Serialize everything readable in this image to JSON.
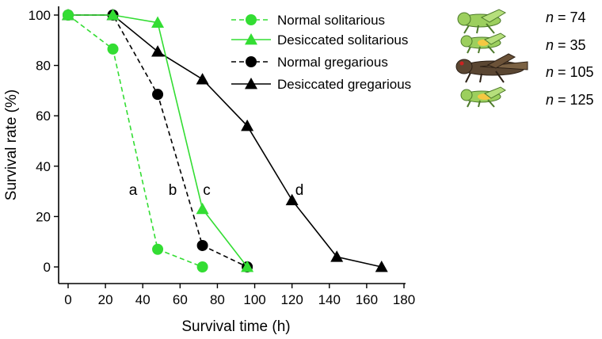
{
  "chart_data": {
    "type": "line",
    "title": "",
    "xlabel": "Survival time (h)",
    "ylabel": "Survival rate (%)",
    "xlim": [
      0,
      180
    ],
    "ylim": [
      0,
      100
    ],
    "xticks": [
      "0",
      "20",
      "40",
      "60",
      "80",
      "100",
      "120",
      "140",
      "160",
      "180"
    ],
    "yticks": [
      "0",
      "20",
      "40",
      "60",
      "80",
      "100"
    ],
    "grid": false,
    "series": [
      {
        "name": "Normal solitarious",
        "color": "#33dd33",
        "dash": true,
        "marker": "circle",
        "x": [
          0,
          24,
          48,
          72
        ],
        "y": [
          100,
          86.5,
          7,
          0
        ],
        "n": "74",
        "label": "a"
      },
      {
        "name": "Desiccated solitarious",
        "color": "#33dd33",
        "dash": false,
        "marker": "triangle",
        "x": [
          0,
          24,
          48,
          72,
          96
        ],
        "y": [
          100,
          100,
          97,
          23,
          0
        ],
        "n": "35",
        "label": "c"
      },
      {
        "name": "Normal gregarious",
        "color": "#000000",
        "dash": true,
        "marker": "circle",
        "x": [
          0,
          24,
          48,
          72,
          96
        ],
        "y": [
          100,
          100,
          68.5,
          8.5,
          0
        ],
        "n": "105",
        "label": "b"
      },
      {
        "name": "Desiccated gregarious",
        "color": "#000000",
        "dash": false,
        "marker": "triangle",
        "x": [
          0,
          24,
          48,
          72,
          96,
          120,
          144,
          168
        ],
        "y": [
          100,
          100,
          85.5,
          74.5,
          56,
          26.5,
          4,
          0
        ],
        "n": "125",
        "label": "d"
      }
    ],
    "n_prefix": "n",
    "n_eq": " = "
  },
  "colors": {
    "solitarious": "#33dd33",
    "gregarious": "#000000",
    "locust_green": "#9ccf5e",
    "locust_brown": "#5a4632",
    "highlight": "#f5c842"
  }
}
